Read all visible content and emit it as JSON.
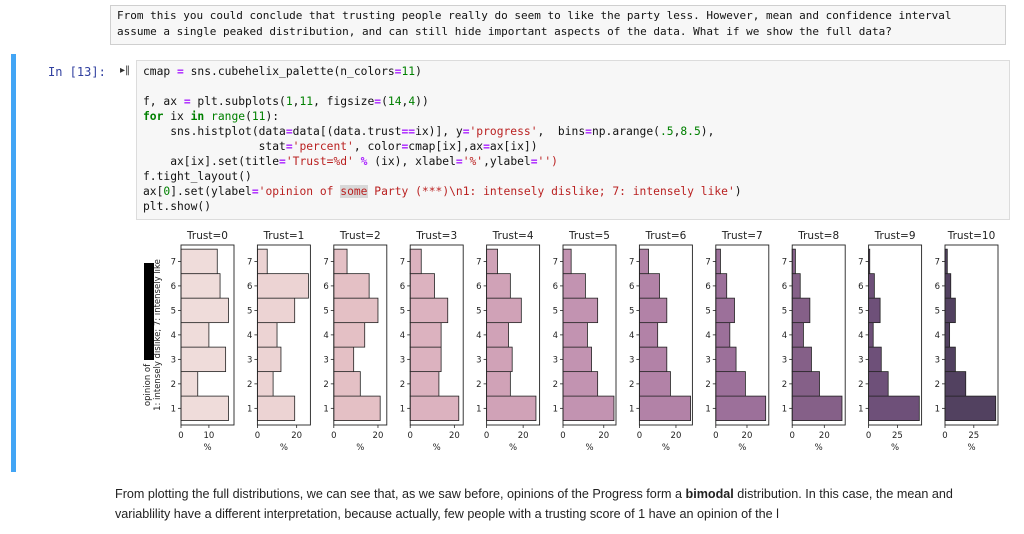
{
  "top_note": {
    "line1": "From this you could conclude that trusting people really do seem to like the party less. However, mean and confidence interval",
    "line2": "assume a single peaked distribution, and can still hide important aspects of the data. What if we show the full data?"
  },
  "cell": {
    "prompt": "In [13]:",
    "collapse_icon": "collapse-arrow-icon",
    "accent_color": "#42a5f5"
  },
  "code": {
    "l1a": "cmap ",
    "l1b": "=",
    "l1c": " sns.cubehelix_palette(n_colors",
    "l1d": "=",
    "l1e": "11",
    "l1f": ")",
    "l3a": "f, ax ",
    "l3b": "=",
    "l3c": " plt.subplots(",
    "l3d": "1",
    "l3e": ",",
    "l3f": "11",
    "l3g": ", figsize",
    "l3h": "=",
    "l3i": "(",
    "l3j": "14",
    "l3k": ",",
    "l3l": "4",
    "l3m": "))",
    "l4a": "for",
    "l4b": " ix ",
    "l4c": "in",
    "l4d": " ",
    "l4e": "range",
    "l4f": "(",
    "l4g": "11",
    "l4h": "):",
    "l5a": "    sns.histplot(data",
    "l5b": "=",
    "l5c": "data[(data.trust",
    "l5d": "==",
    "l5e": "ix)], y",
    "l5f": "=",
    "l5g": "'progress'",
    "l5h": ",  bins",
    "l5i": "=",
    "l5j": "np.arange(",
    "l5k": ".5",
    "l5l": ",",
    "l5m": "8.5",
    "l5n": "),",
    "l6a": "                 stat",
    "l6b": "=",
    "l6c": "'percent'",
    "l6d": ", color",
    "l6e": "=",
    "l6f": "cmap[ix],ax",
    "l6g": "=",
    "l6h": "ax[ix])",
    "l7a": "    ax[ix].set(title",
    "l7b": "=",
    "l7c": "'Trust=%d'",
    "l7d": " % ",
    "l7e": "(ix), xlabel",
    "l7f": "=",
    "l7g": "'%'",
    "l7h": ",ylabel",
    "l7i": "=",
    "l7j": "'')",
    "l8": "f.tight_layout()",
    "l9a": "ax[",
    "l9b": "0",
    "l9c": "].set(ylabel",
    "l9d": "=",
    "l9e": "'opinion of ",
    "l9f": "some",
    "l9g": " Party (***)\\n1: intensely dislike; 7: intensely like'",
    "l9h": ")",
    "l10": "plt.show()"
  },
  "chart_data": {
    "type": "bar",
    "orientation": "horizontal",
    "ylabel": "opinion of some Party (***)\n1: intensely dislike; 7: intensely like",
    "ylabel_line1": "opinion of",
    "ylabel_line2": "1: intensely dislike; 7: intensely like",
    "xlabel": "%",
    "categories": [
      1,
      2,
      3,
      4,
      5,
      6,
      7
    ],
    "series": [
      {
        "name": "Trust=0",
        "color": "#efdcda",
        "xticks": [
          0,
          10
        ],
        "xmax": 19,
        "values": [
          17,
          6,
          16,
          10,
          17,
          14,
          13
        ]
      },
      {
        "name": "Trust=1",
        "color": "#ecd3d3",
        "xticks": [
          0,
          20
        ],
        "xmax": 27,
        "values": [
          19,
          8,
          12,
          10,
          19,
          26,
          5
        ]
      },
      {
        "name": "Trust=2",
        "color": "#e4c0c5",
        "xticks": [
          0,
          20
        ],
        "xmax": 24,
        "values": [
          21,
          12,
          9,
          14,
          20,
          16,
          6
        ]
      },
      {
        "name": "Trust=3",
        "color": "#dcb2bf",
        "xticks": [
          0,
          20
        ],
        "xmax": 24,
        "values": [
          22,
          13,
          14,
          14,
          17,
          11,
          5
        ]
      },
      {
        "name": "Trust=4",
        "color": "#d0a2b7",
        "xticks": [
          0,
          20
        ],
        "xmax": 29,
        "values": [
          27,
          13,
          14,
          12,
          19,
          13,
          6
        ]
      },
      {
        "name": "Trust=5",
        "color": "#c293b1",
        "xticks": [
          0,
          20
        ],
        "xmax": 26,
        "values": [
          25,
          17,
          14,
          12,
          17,
          11,
          4
        ]
      },
      {
        "name": "Trust=6",
        "color": "#b282a7",
        "xticks": [
          0,
          20
        ],
        "xmax": 29,
        "values": [
          28,
          17,
          15,
          10,
          15,
          11,
          5
        ]
      },
      {
        "name": "Trust=7",
        "color": "#9c709a",
        "xticks": [
          0,
          20
        ],
        "xmax": 34,
        "values": [
          32,
          19,
          13,
          9,
          12,
          7,
          3
        ]
      },
      {
        "name": "Trust=8",
        "color": "#856088",
        "xticks": [
          0,
          20
        ],
        "xmax": 33,
        "values": [
          31,
          17,
          12,
          7,
          11,
          5,
          2
        ]
      },
      {
        "name": "Trust=9",
        "color": "#6e5079",
        "xticks": [
          0,
          25
        ],
        "xmax": 46,
        "values": [
          44,
          17,
          11,
          4,
          10,
          5,
          1
        ]
      },
      {
        "name": "Trust=10",
        "color": "#524160",
        "xticks": [
          0,
          25
        ],
        "xmax": 46,
        "values": [
          44,
          18,
          9,
          4,
          9,
          5,
          2
        ]
      }
    ]
  },
  "description": {
    "part1": "From plotting the full distributions, we can see that, as we saw before, opinions of the Progress form a ",
    "bold": "bimodal",
    "part2": " distribution. In this case, the mean and",
    "line2": "variablility have a different interpretation, because actually, few people with a trusting score of 1 have an opinion of the l"
  }
}
